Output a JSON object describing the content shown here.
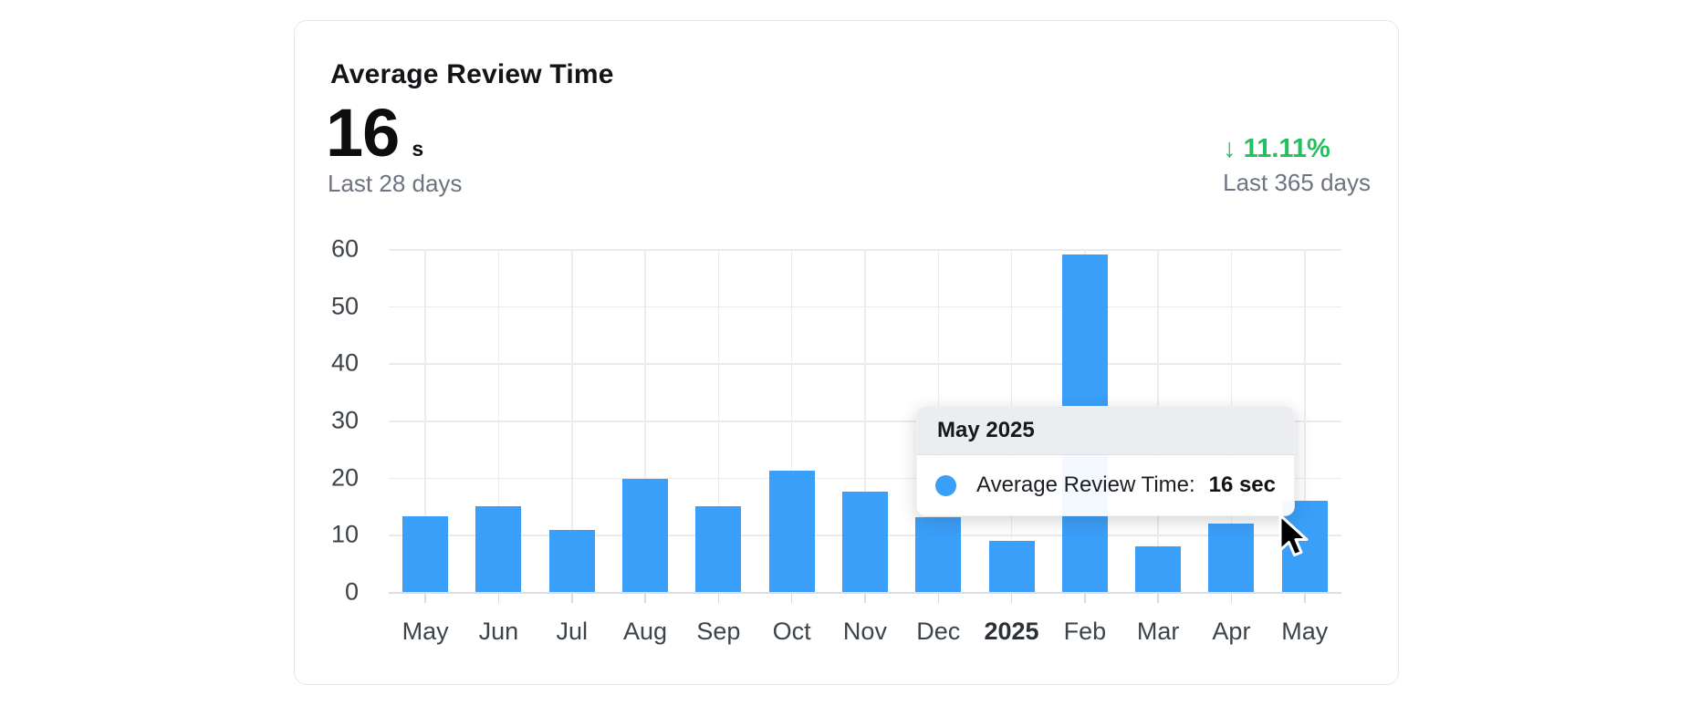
{
  "card": {
    "title": "Average Review Time",
    "metric": {
      "value": "16",
      "unit": "s",
      "caption": "Last 28 days"
    },
    "delta": {
      "text": "↓ 11.11%",
      "caption": "Last 365 days",
      "color": "#22C05E"
    }
  },
  "chart_data": {
    "type": "bar",
    "title": "Average Review Time",
    "series_name": "Average Review Time",
    "categories": [
      "May",
      "Jun",
      "Jul",
      "Aug",
      "Sep",
      "Oct",
      "Nov",
      "Dec",
      "2025",
      "Feb",
      "Mar",
      "Apr",
      "May"
    ],
    "values": [
      13.3,
      15,
      10.8,
      19.8,
      15,
      21.3,
      17.5,
      13.1,
      8.9,
      59,
      7.9,
      11.9,
      16
    ],
    "bold_category": "2025",
    "unit": "sec",
    "ylim": [
      0,
      60
    ],
    "yticks": [
      0,
      10,
      20,
      30,
      40,
      50,
      60
    ],
    "grid": true,
    "legend_position": "none",
    "bar_color": "#3A9FF8",
    "hovered_index": 12
  },
  "tooltip": {
    "title": "May 2025",
    "label": "Average Review Time:",
    "value": "16 sec"
  }
}
